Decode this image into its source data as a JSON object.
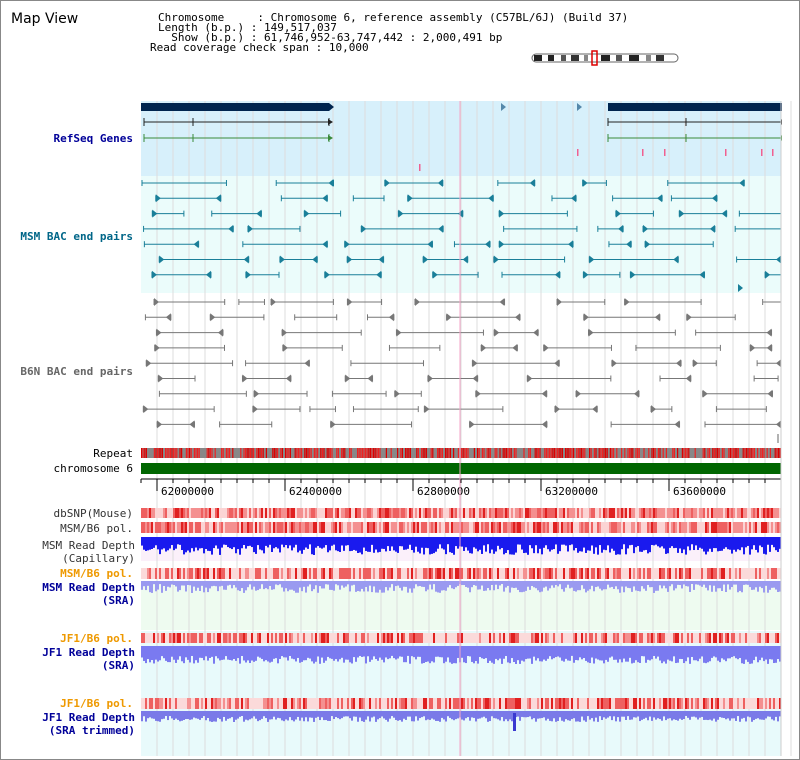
{
  "page": {
    "title": "Map View"
  },
  "header": {
    "rows": [
      {
        "label": "Chromosome",
        "sep": ":",
        "value": "Chromosome 6, reference assembly (C57BL/6J) (Build 37)"
      },
      {
        "label": "Length (b.p.)",
        "sep": ":",
        "value": "149,517,037"
      },
      {
        "label": "Show (b.p.)",
        "sep": ":",
        "value": "61,746,952-63,747,442 : 2,000,491 bp"
      },
      {
        "label": "Read coverage check span",
        "sep": ":",
        "value": "10,000"
      }
    ]
  },
  "tracks": {
    "refseq": "RefSeq Genes",
    "msm_bac": "MSM BAC end pairs",
    "b6n_bac": "B6N BAC end pairs",
    "repeat": "Repeat",
    "chromosome": "chromosome 6",
    "dbsnp": "dbSNP(Mouse)",
    "msm_b6_pol": "MSM/B6 pol.",
    "msm_depth_cap_1": "MSM Read Depth",
    "msm_depth_cap_2": "(Capillary)",
    "msm_b6_pol_2": "MSM/B6 pol.",
    "msm_depth_sra_1": "MSM Read Depth",
    "msm_depth_sra_2": "(SRA)",
    "jf1_b6_pol": "JF1/B6 pol.",
    "jf1_depth_sra_1": "JF1 Read Depth",
    "jf1_depth_sra_2": "(SRA)",
    "jf1_b6_pol_2": "JF1/B6 pol.",
    "jf1_depth_trim_1": "JF1 Read Depth",
    "jf1_depth_trim_2": "(SRA trimmed)"
  },
  "axis": {
    "ticks": [
      "62000000",
      "62400000",
      "62800000",
      "63200000",
      "63600000"
    ]
  },
  "colors": {
    "refseq_bg": "#d7f0fb",
    "bac_bg": "#ebfcfb",
    "chromosome": "#006600",
    "gene_dark": "#00254f",
    "msm_label": "#006688",
    "refseq_label": "#000099",
    "pol_orange": "#ee9900",
    "depth_blue": "#1a1aee"
  }
}
